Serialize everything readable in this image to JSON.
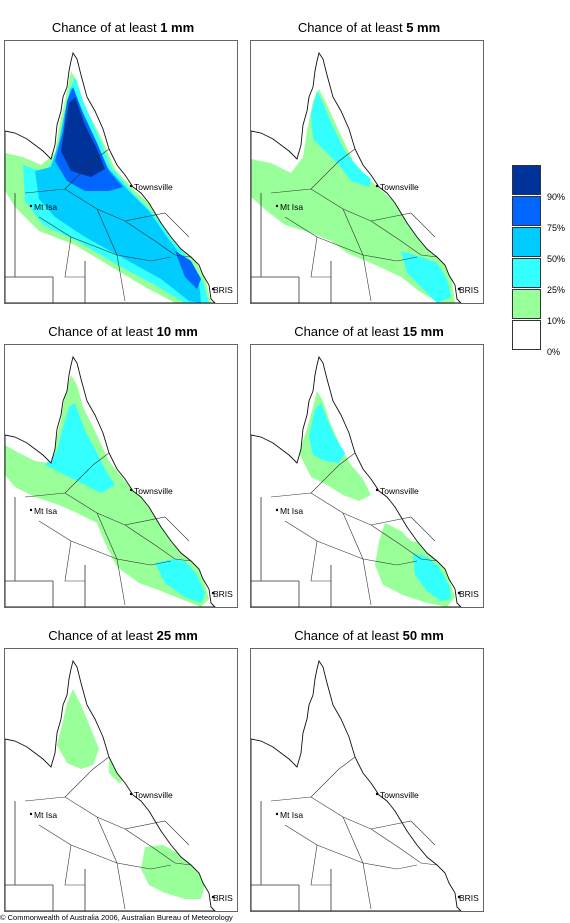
{
  "panels": [
    {
      "title_prefix": "Chance of at least ",
      "title_value": "1 mm",
      "level": 1
    },
    {
      "title_prefix": "Chance of at least ",
      "title_value": "5 mm",
      "level": 2
    },
    {
      "title_prefix": "Chance of at least ",
      "title_value": "10 mm",
      "level": 3
    },
    {
      "title_prefix": "Chance of at least ",
      "title_value": "15 mm",
      "level": 4
    },
    {
      "title_prefix": "Chance of at least ",
      "title_value": "25 mm",
      "level": 5
    },
    {
      "title_prefix": "Chance of at least ",
      "title_value": "50 mm",
      "level": 6
    }
  ],
  "map_labels": {
    "townsville": "Townsville",
    "mt_isa": "Mt Isa",
    "bris": "BRIS"
  },
  "legend": {
    "items": [
      {
        "color": "#003399",
        "label": "90%"
      },
      {
        "color": "#0066ff",
        "label": "75%"
      },
      {
        "color": "#00ccff",
        "label": "50%"
      },
      {
        "color": "#33ffff",
        "label": "25%"
      },
      {
        "color": "#99ff99",
        "label": "10%"
      },
      {
        "color": "#ffffff",
        "label": "0%"
      }
    ]
  },
  "copyright": "© Commonwealth of Australia 2006, Australian Bureau of Meteorology"
}
